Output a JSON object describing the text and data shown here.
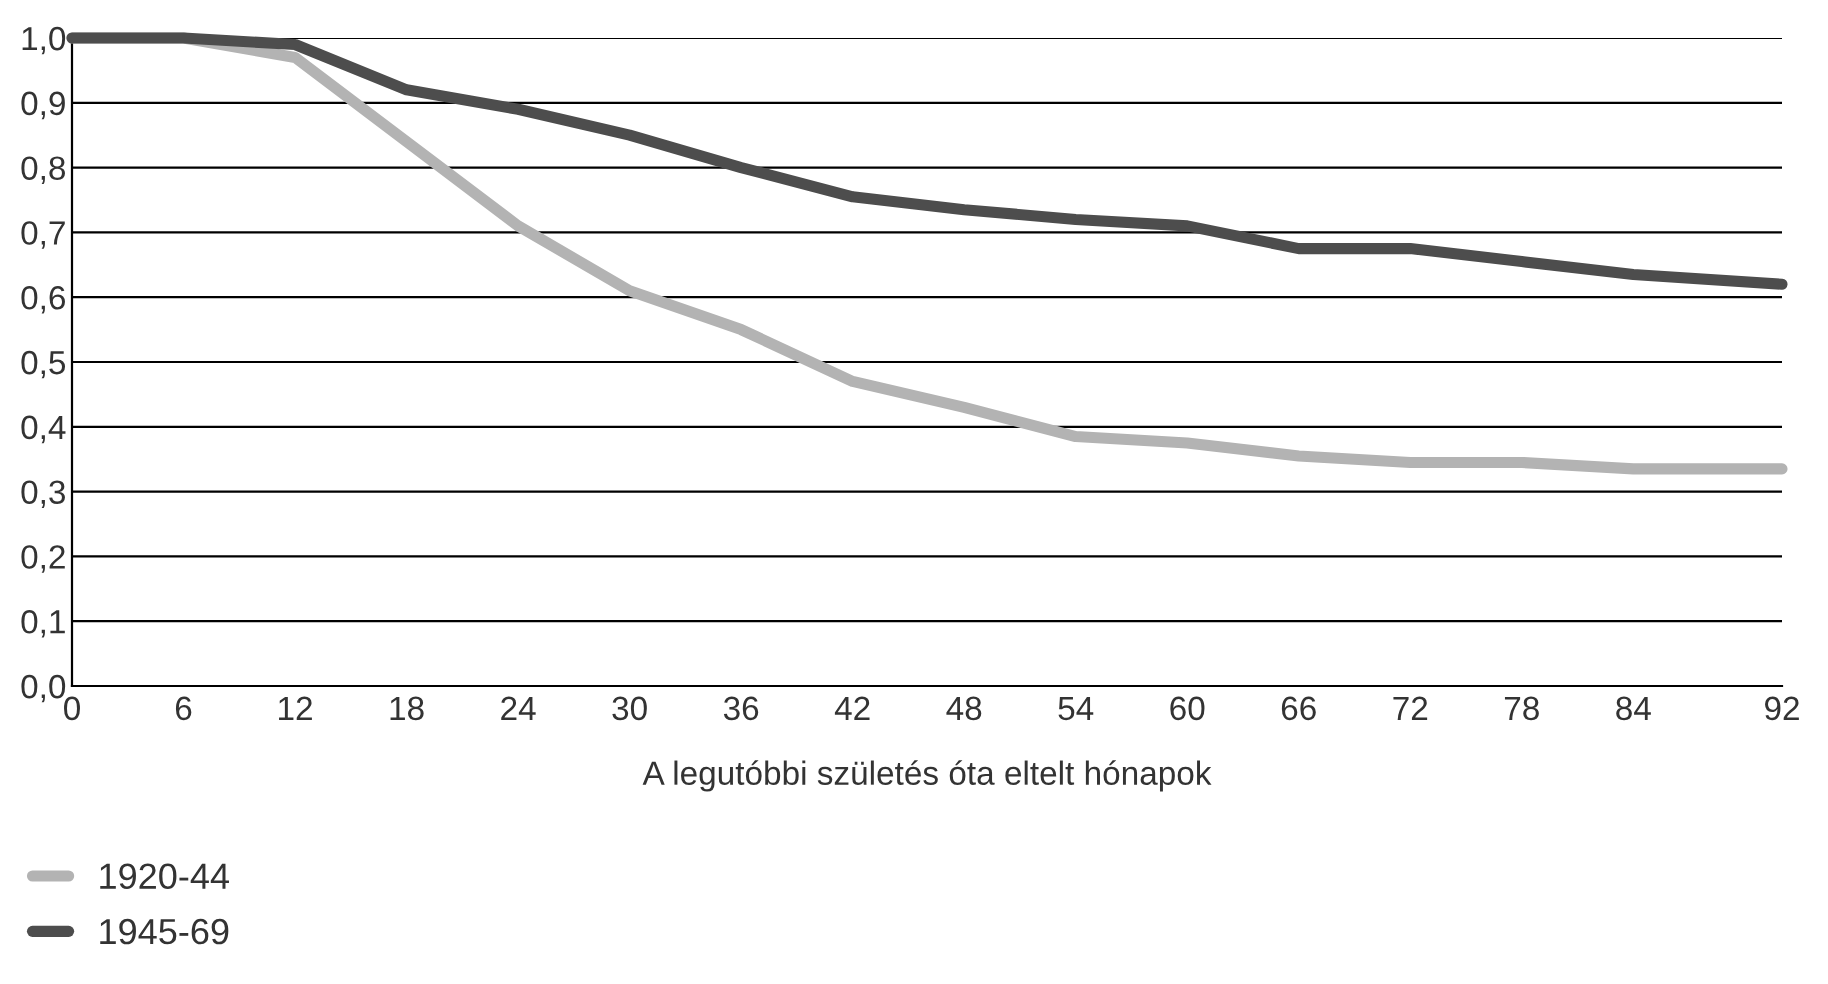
{
  "chart_data": {
    "type": "line",
    "x": [
      0,
      6,
      12,
      18,
      24,
      30,
      36,
      42,
      48,
      54,
      60,
      66,
      72,
      78,
      84,
      92
    ],
    "series": [
      {
        "name": "1920-44",
        "color": "#b3b3b3",
        "values": [
          1.0,
          1.0,
          0.97,
          0.84,
          0.71,
          0.61,
          0.55,
          0.47,
          0.43,
          0.385,
          0.375,
          0.355,
          0.345,
          0.345,
          0.335,
          0.335
        ]
      },
      {
        "name": "1945-69",
        "color": "#4d4d4d",
        "values": [
          1.0,
          1.0,
          0.99,
          0.92,
          0.89,
          0.85,
          0.8,
          0.755,
          0.735,
          0.72,
          0.71,
          0.675,
          0.675,
          0.655,
          0.635,
          0.62
        ]
      }
    ],
    "xlabel": "A legutóbbi születés óta eltelt hónapok",
    "xlim": [
      0,
      92
    ],
    "xticks": [
      0,
      6,
      12,
      18,
      24,
      30,
      36,
      42,
      48,
      54,
      60,
      66,
      72,
      78,
      84,
      92
    ],
    "ylim": [
      0,
      1.0
    ],
    "yticks": [
      {
        "value": 0,
        "label": "0,0"
      },
      {
        "value": 0.1,
        "label": "0,1"
      },
      {
        "value": 0.2,
        "label": "0,2"
      },
      {
        "value": 0.3,
        "label": "0,3"
      },
      {
        "value": 0.4,
        "label": "0,4"
      },
      {
        "value": 0.5,
        "label": "0,5"
      },
      {
        "value": 0.6,
        "label": "0,6"
      },
      {
        "value": 0.7,
        "label": "0,7"
      },
      {
        "value": 0.8,
        "label": "0,8"
      },
      {
        "value": 0.9,
        "label": "0,9"
      },
      {
        "value": 1.0,
        "label": "1,0"
      }
    ],
    "grid": "y",
    "legend": "bottom left",
    "line_style": "solid",
    "marker": "none"
  }
}
